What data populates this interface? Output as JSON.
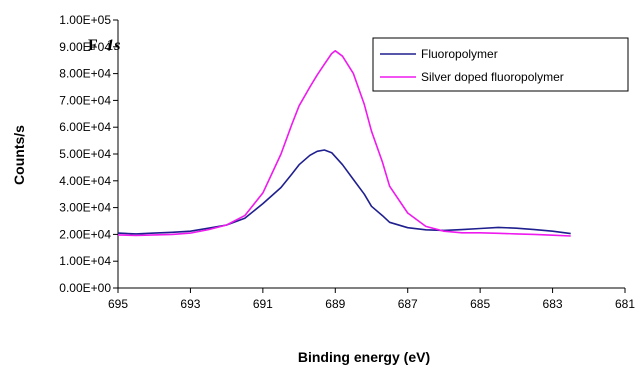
{
  "chart_data": {
    "type": "line",
    "annotation": {
      "element": "F",
      "orbital": "1s"
    },
    "xlabel": "Binding energy (eV)",
    "ylabel": "Counts/s",
    "xlim": [
      695,
      681
    ],
    "x_reversed": true,
    "ylim": [
      0,
      100000
    ],
    "x_ticks": [
      "695",
      "693",
      "691",
      "689",
      "687",
      "685",
      "683",
      "681"
    ],
    "x_tick_values": [
      695,
      693,
      691,
      689,
      687,
      685,
      683,
      681
    ],
    "y_ticks": [
      "0.00E+00",
      "1.00E+04",
      "2.00E+04",
      "3.00E+04",
      "4.00E+04",
      "5.00E+04",
      "6.00E+04",
      "7.00E+04",
      "8.00E+04",
      "9.00E+04",
      "1.00E+05"
    ],
    "y_tick_values": [
      0,
      10000,
      20000,
      30000,
      40000,
      50000,
      60000,
      70000,
      80000,
      90000,
      100000
    ],
    "grid": false,
    "legend_position": "top-right",
    "series": [
      {
        "name": "Fluoropolymer",
        "color": "#1f1f8f",
        "x": [
          695,
          694.5,
          694,
          693.5,
          693,
          692.5,
          692,
          691.5,
          691,
          690.5,
          690.2,
          690,
          689.7,
          689.5,
          689.3,
          689.1,
          689,
          688.8,
          688.5,
          688.2,
          688,
          687.7,
          687.5,
          687,
          686.5,
          686,
          685.5,
          685,
          684.5,
          684,
          683.5,
          683,
          682.5
        ],
        "y": [
          20500,
          20200,
          20500,
          20800,
          21200,
          22300,
          23500,
          26000,
          31500,
          37500,
          42500,
          46000,
          49500,
          51000,
          51500,
          50500,
          49000,
          46000,
          40500,
          35000,
          30500,
          27000,
          24500,
          22500,
          21700,
          21500,
          21800,
          22200,
          22600,
          22300,
          21800,
          21200,
          20300
        ]
      },
      {
        "name": "Silver doped fluoropolymer",
        "color": "#ee1aee",
        "x": [
          695,
          694.5,
          694,
          693.5,
          693,
          692.5,
          692,
          691.5,
          691,
          690.5,
          690.2,
          690,
          689.7,
          689.5,
          689.3,
          689.1,
          689,
          688.8,
          688.5,
          688.2,
          688,
          687.7,
          687.5,
          687,
          686.5,
          686,
          685.5,
          685,
          684.5,
          684,
          683.5,
          683,
          682.5
        ],
        "y": [
          19800,
          19600,
          19800,
          20000,
          20500,
          21800,
          23500,
          27000,
          35500,
          50000,
          61000,
          68000,
          75000,
          79500,
          83500,
          87500,
          88500,
          86500,
          80000,
          68500,
          58500,
          47000,
          38000,
          28000,
          23000,
          21200,
          20600,
          20600,
          20400,
          20200,
          20000,
          19700,
          19400
        ]
      }
    ]
  }
}
